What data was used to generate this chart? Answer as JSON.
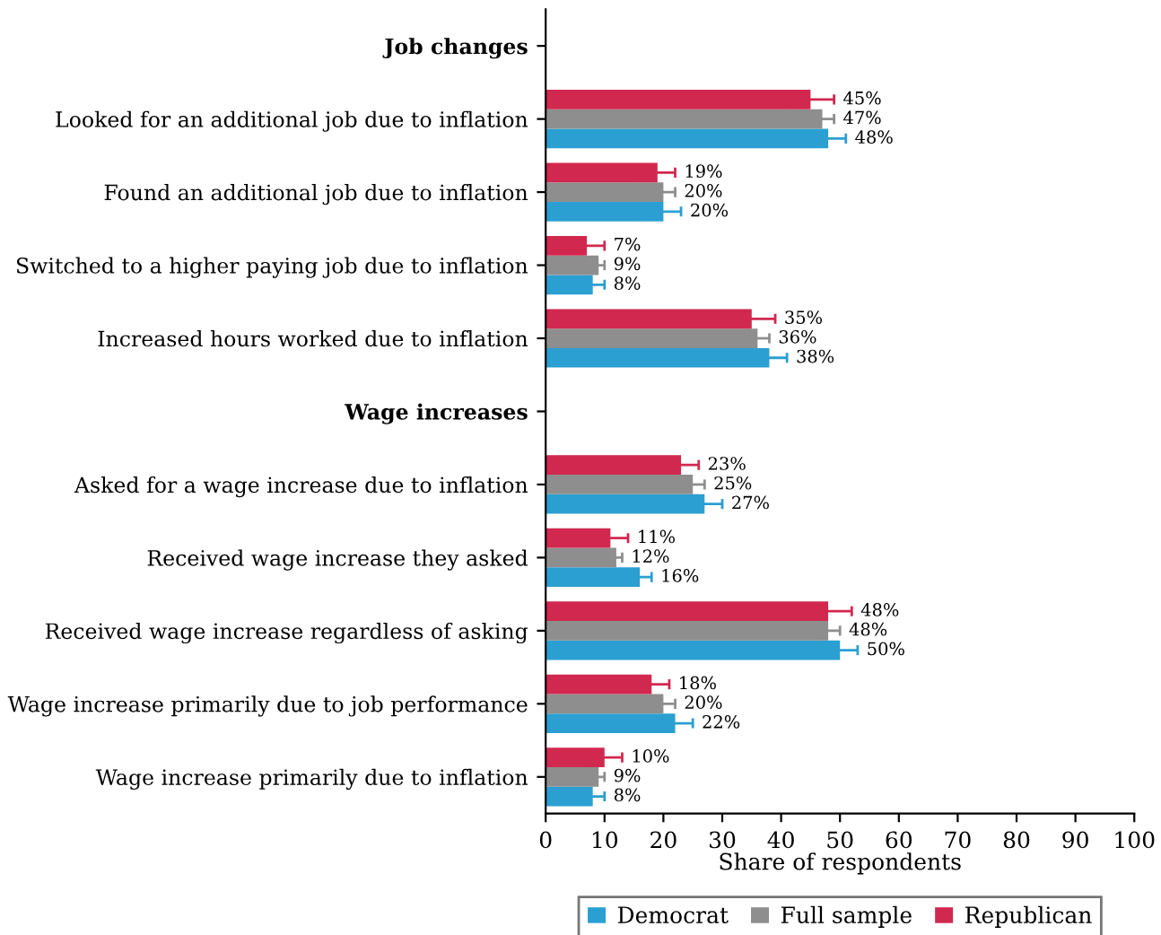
{
  "chart_data": {
    "type": "bar",
    "orientation": "horizontal",
    "xlabel": "Share of respondents",
    "categories": [
      "Job changes",
      "Looked for an additional job due to inflation",
      "Found an additional job due to inflation",
      "Switched to a higher paying job due to inflation",
      "Increased hours worked due to inflation",
      "Wage increases",
      "Asked for a wage increase due to inflation",
      "Received wage increase they asked",
      "Received wage increase regardless of asking",
      "Wage increase primarily due to job performance",
      "Wage increase primarily due to inflation"
    ],
    "series": [
      {
        "name": "Democrat",
        "color": "#2b9fd1",
        "values": [
          null,
          48,
          20,
          8,
          38,
          null,
          27,
          16,
          50,
          22,
          8
        ],
        "errors": [
          null,
          3,
          3,
          2,
          3,
          null,
          3,
          2,
          3,
          3,
          2
        ],
        "value_labels": [
          null,
          "48%",
          "20%",
          "8%",
          "38%",
          null,
          "27%",
          "16%",
          "50%",
          "22%",
          "8%"
        ]
      },
      {
        "name": "Full sample",
        "color": "#8e8e8e",
        "values": [
          null,
          47,
          20,
          9,
          36,
          null,
          25,
          12,
          48,
          20,
          9
        ],
        "errors": [
          null,
          2,
          2,
          1,
          2,
          null,
          2,
          1,
          2,
          2,
          1
        ],
        "value_labels": [
          null,
          "47%",
          "20%",
          "9%",
          "36%",
          null,
          "25%",
          "12%",
          "48%",
          "20%",
          "9%"
        ]
      },
      {
        "name": "Republican",
        "color": "#d1284f",
        "values": [
          null,
          45,
          19,
          7,
          35,
          null,
          23,
          11,
          48,
          18,
          10
        ],
        "errors": [
          null,
          4,
          3,
          3,
          4,
          null,
          3,
          3,
          4,
          3,
          3
        ],
        "value_labels": [
          null,
          "45%",
          "19%",
          "7%",
          "35%",
          null,
          "23%",
          "11%",
          "48%",
          "18%",
          "10%"
        ]
      }
    ],
    "xlim": [
      0,
      100
    ],
    "xticks": [
      0,
      10,
      20,
      30,
      40,
      50,
      60,
      70,
      80,
      90,
      100
    ],
    "grid": false,
    "legend": "bottom"
  }
}
